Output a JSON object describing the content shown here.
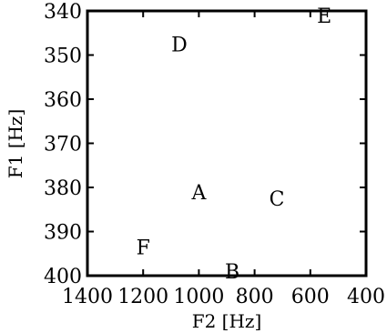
{
  "chart_data": {
    "type": "scatter",
    "xlabel": "F2 [Hz]",
    "ylabel": "F1 [Hz]",
    "x_axis": {
      "range": [
        1400,
        400
      ],
      "direction": "reversed",
      "ticks": [
        1400,
        1200,
        1000,
        800,
        600,
        400
      ]
    },
    "y_axis": {
      "range": [
        340,
        400
      ],
      "direction": "reversed",
      "ticks": [
        340,
        350,
        360,
        370,
        380,
        390,
        400
      ]
    },
    "points": [
      {
        "label": "A",
        "x": 1000,
        "y": 381
      },
      {
        "label": "B",
        "x": 880,
        "y": 399
      },
      {
        "label": "C",
        "x": 720,
        "y": 382.5
      },
      {
        "label": "D",
        "x": 1070,
        "y": 347.5
      },
      {
        "label": "E",
        "x": 550,
        "y": 341
      },
      {
        "label": "F",
        "x": 1200,
        "y": 393.5
      }
    ],
    "grid": false,
    "legend": "none"
  }
}
